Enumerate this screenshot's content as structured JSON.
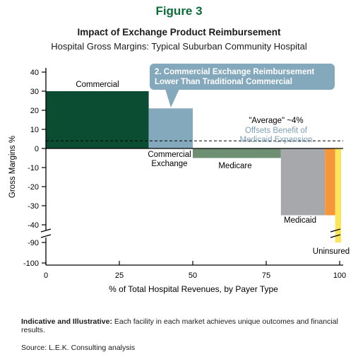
{
  "figure_label": "Figure 3",
  "footnote": {
    "lead": "Indicative and Illustrative:",
    "text": " Each facility in each market achieves unique outcomes and financial results."
  },
  "source": "Source: L.E.K. Consulting analysis",
  "chart_data": {
    "type": "bar",
    "title": "Impact of Exchange Product Reimbursement",
    "subtitle": "Hospital Gross Margins: Typical Suburban Community Hospital",
    "xlabel": "% of Total Hospital Revenues, by Payer Type",
    "ylabel": "Gross Margins %",
    "x_ticks": [
      0,
      25,
      50,
      75,
      100
    ],
    "y_ticks_upper": [
      40,
      30,
      20,
      10,
      0,
      -10,
      -20,
      -30,
      -40
    ],
    "y_ticks_lower": [
      -90,
      -100
    ],
    "y_axis_break": true,
    "colors": {
      "commercial": "#0b4d33",
      "exchange": "#84a9bd",
      "medicare": "#6f8f72",
      "medicaid": "#a6a8ab",
      "uninsured_orange": "#f6963a",
      "uninsured_yellow": "#fde55a",
      "callout": "#84a9bd",
      "offsets_text": "#7b9fb3"
    },
    "bars": [
      {
        "name": "Commercial",
        "x_start": 0,
        "x_end": 35,
        "value": 30,
        "color_key": "commercial"
      },
      {
        "name": "Commercial Exchange",
        "x_start": 35,
        "x_end": 50,
        "value": 21,
        "color_key": "exchange"
      },
      {
        "name": "Medicare",
        "x_start": 50,
        "x_end": 80,
        "value": -5,
        "color_key": "medicare"
      },
      {
        "name": "Medicaid",
        "x_start": 80,
        "x_end": 95,
        "value": -35,
        "color_key": "medicaid"
      },
      {
        "name": "Uninsured",
        "x_start": 95,
        "x_end": 98.5,
        "value": -35,
        "color_key": "uninsured_orange"
      },
      {
        "name": "Uninsured",
        "x_start": 98.5,
        "x_end": 100.5,
        "value": -90,
        "color_key": "uninsured_yellow"
      }
    ],
    "labels": {
      "commercial": "Commercial",
      "exchange_line1": "Commercial",
      "exchange_line2": "Exchange",
      "medicare": "Medicare",
      "medicaid": "Medicaid",
      "uninsured": "Uninsured"
    },
    "average": {
      "value": 4,
      "label": "\"Average\" ~4%",
      "note_line1": "Offsets Benefit of",
      "note_line2": "Medicaid Expansion"
    },
    "callout": {
      "line1": "2. Commercial Exchange Reimbursement",
      "line2": "Lower Than Traditional Commercial"
    }
  }
}
